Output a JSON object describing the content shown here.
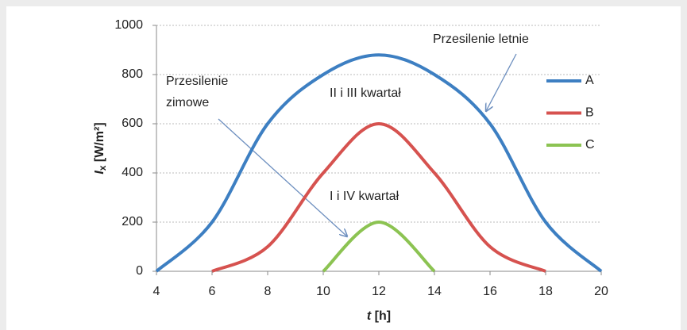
{
  "chart_data": {
    "type": "line",
    "xlabel": {
      "var": "t",
      "unit": "[h]"
    },
    "ylabel": {
      "var": "I",
      "sub": "x",
      "unit": "[W/m²]"
    },
    "xlim": [
      4,
      20
    ],
    "xticks": [
      4,
      6,
      8,
      10,
      12,
      14,
      16,
      18,
      20
    ],
    "ylim": [
      0,
      1000
    ],
    "yticks": [
      0,
      200,
      400,
      600,
      800,
      1000
    ],
    "grid": true,
    "legend": "right",
    "series": [
      {
        "name": "A",
        "color": "#3d7fc2",
        "x": [
          4,
          6,
          8,
          10,
          12,
          14,
          16,
          18,
          20
        ],
        "values": [
          0,
          200,
          600,
          800,
          880,
          800,
          600,
          200,
          0
        ]
      },
      {
        "name": "B",
        "color": "#d6524f",
        "x": [
          6,
          8,
          10,
          12,
          14,
          16,
          18
        ],
        "values": [
          0,
          100,
          400,
          600,
          400,
          100,
          0
        ]
      },
      {
        "name": "C",
        "color": "#8cc352",
        "x": [
          10,
          12,
          14
        ],
        "values": [
          0,
          200,
          0
        ]
      }
    ],
    "annotations": [
      {
        "lines": [
          "Przesilenie letnie"
        ]
      },
      {
        "lines": [
          "Przesilenie",
          "zimowe"
        ]
      },
      {
        "lines": [
          "II i III kwartał"
        ]
      },
      {
        "lines": [
          "I i IV kwartał"
        ]
      }
    ]
  }
}
